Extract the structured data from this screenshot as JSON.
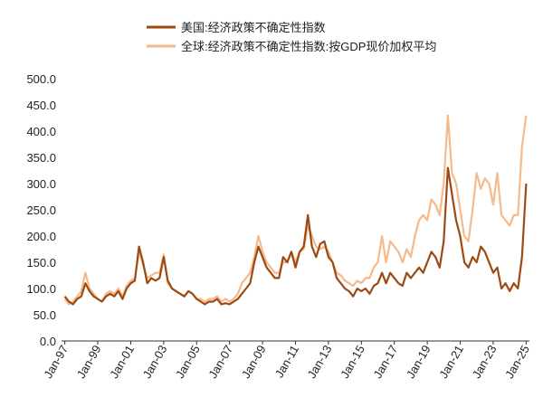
{
  "chart_data": {
    "type": "line",
    "title": "",
    "xlabel": "",
    "ylabel": "",
    "ylim": [
      0,
      500
    ],
    "yticks": [
      "0.0",
      "50.0",
      "100.0",
      "150.0",
      "200.0",
      "250.0",
      "300.0",
      "350.0",
      "400.0",
      "450.0",
      "500.0"
    ],
    "xticks": [
      "Jan-97",
      "Jan-99",
      "Jan-01",
      "Jan-03",
      "Jan-05",
      "Jan-07",
      "Jan-09",
      "Jan-11",
      "Jan-13",
      "Jan-15",
      "Jan-17",
      "Jan-19",
      "Jan-21",
      "Jan-23",
      "Jan-25"
    ],
    "x_start": 1997,
    "x_step_years": 0.25,
    "legend_position": "top",
    "grid": false,
    "series": [
      {
        "name": "美国:经济政策不确定性指数",
        "color": "#9c4a12",
        "values": [
          85,
          75,
          70,
          80,
          85,
          110,
          95,
          85,
          80,
          75,
          85,
          90,
          85,
          95,
          80,
          100,
          110,
          115,
          180,
          150,
          110,
          120,
          115,
          120,
          160,
          115,
          100,
          95,
          90,
          85,
          95,
          90,
          80,
          75,
          70,
          75,
          75,
          80,
          70,
          72,
          70,
          75,
          80,
          90,
          100,
          110,
          150,
          180,
          160,
          140,
          130,
          120,
          120,
          160,
          150,
          170,
          140,
          170,
          180,
          240,
          180,
          160,
          185,
          190,
          160,
          150,
          120,
          110,
          100,
          95,
          85,
          100,
          95,
          100,
          90,
          105,
          110,
          130,
          110,
          130,
          120,
          110,
          105,
          130,
          120,
          130,
          140,
          130,
          150,
          170,
          160,
          140,
          190,
          330,
          280,
          230,
          200,
          150,
          140,
          160,
          150,
          180,
          170,
          150,
          130,
          140,
          100,
          110,
          95,
          110,
          100,
          160,
          300
        ]
      },
      {
        "name": "全球:经济政策不确定性指数:按GDP现价加权平均",
        "color": "#f6b98a",
        "values": [
          80,
          70,
          75,
          85,
          95,
          130,
          100,
          90,
          80,
          75,
          90,
          95,
          90,
          100,
          85,
          105,
          115,
          120,
          170,
          145,
          120,
          125,
          130,
          130,
          165,
          110,
          100,
          95,
          90,
          85,
          95,
          90,
          80,
          80,
          75,
          80,
          80,
          85,
          75,
          80,
          75,
          80,
          90,
          110,
          120,
          130,
          160,
          200,
          170,
          150,
          140,
          130,
          130,
          150,
          150,
          170,
          150,
          170,
          175,
          220,
          200,
          180,
          175,
          180,
          170,
          150,
          130,
          125,
          115,
          110,
          105,
          115,
          110,
          120,
          120,
          140,
          150,
          200,
          150,
          190,
          180,
          170,
          150,
          175,
          160,
          200,
          230,
          240,
          230,
          270,
          260,
          240,
          300,
          430,
          320,
          300,
          250,
          200,
          190,
          250,
          320,
          290,
          310,
          300,
          260,
          320,
          240,
          230,
          220,
          240,
          240,
          370,
          430
        ]
      }
    ]
  }
}
